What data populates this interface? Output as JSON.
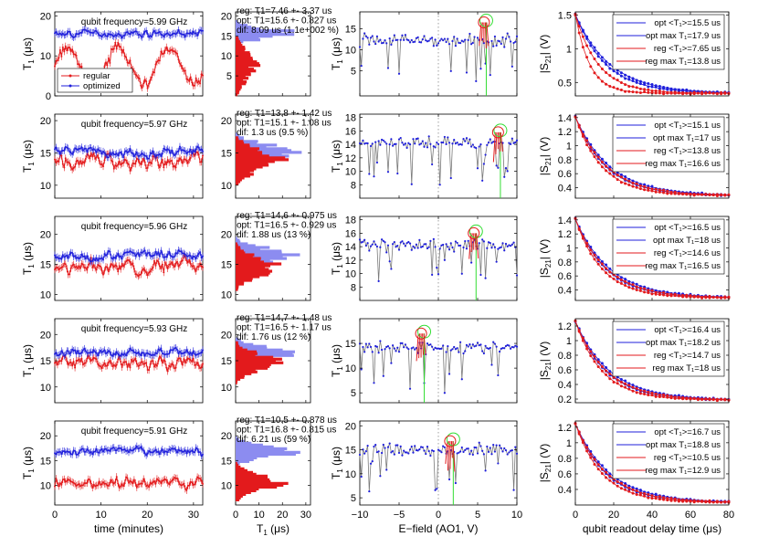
{
  "chart_data": {
    "type": "composite",
    "rows": [
      {
        "frequency_label": "qubit frequency=5.99 GHz",
        "col1": {
          "ylim": [
            0,
            21
          ],
          "yticks": [
            "0",
            "10",
            "20"
          ],
          "regular_mean": 7.46,
          "optimized_mean": 15.6,
          "legend": [
            "regular",
            "optimized"
          ]
        },
        "col2": {
          "yticks": [
            "5",
            "10",
            "15",
            "20"
          ],
          "ylim": [
            0,
            21
          ],
          "annotations": [
            "reg: T1=7.46 +- 3.37 us",
            "opt: T1=15.6 +- 0.827 us",
            "dif: 8.09 us (1.1e+002 %)"
          ]
        },
        "col3": {
          "ylim": [
            -1,
            19
          ],
          "yticks": [
            "5",
            "10",
            "15"
          ],
          "green_x": 6.1,
          "red_x": 5.8,
          "peak": 16.5
        },
        "col4": {
          "ylim": [
            0.3,
            1.55
          ],
          "yticks": [
            "0.5",
            "1",
            "1.5"
          ],
          "legend": [
            "opt <T₁>=15.5 us",
            "opt max T₁=17.9 us",
            "reg <T₁>=7.65 us",
            "reg max T₁=13.8 us"
          ]
        }
      },
      {
        "frequency_label": "qubit frequency=5.97 GHz",
        "col1": {
          "ylim": [
            8,
            21
          ],
          "yticks": [
            "10",
            "15",
            "20"
          ],
          "regular_mean": 13.8,
          "optimized_mean": 15.1
        },
        "col2": {
          "yticks": [
            "10",
            "15",
            "20"
          ],
          "ylim": [
            8,
            21
          ],
          "annotations": [
            "reg: T1=13.8 +- 1.42 us",
            "opt: T1=15.1 +- 1.08 us",
            "dif: 1.3 us (9.5 %)"
          ]
        },
        "col3": {
          "ylim": [
            6,
            18.5
          ],
          "yticks": [
            "8",
            "10",
            "12",
            "14",
            "16",
            "18"
          ],
          "green_x": 7.9,
          "red_x": 7.6,
          "peak": 15.8
        },
        "col4": {
          "ylim": [
            0.25,
            1.45
          ],
          "yticks": [
            "0.4",
            "0.6",
            "0.8",
            "1",
            "1.2",
            "1.4"
          ],
          "legend": [
            "opt <T₁>=15.1 us",
            "opt max T₁=17 us",
            "reg <T₁>=13.8 us",
            "reg max T₁=16.6 us"
          ]
        }
      },
      {
        "frequency_label": "qubit frequency=5.96 GHz",
        "col1": {
          "ylim": [
            9,
            23
          ],
          "yticks": [
            "10",
            "15",
            "20"
          ],
          "regular_mean": 14.6,
          "optimized_mean": 16.5
        },
        "col2": {
          "yticks": [
            "10",
            "15",
            "20"
          ],
          "ylim": [
            9,
            23
          ],
          "annotations": [
            "reg: T1=14.6 +- 0.975 us",
            "opt: T1=16.5 +- 0.929 us",
            "dif: 1.88 us (13 %)"
          ]
        },
        "col3": {
          "ylim": [
            6,
            18.5
          ],
          "yticks": [
            "8",
            "10",
            "12",
            "14",
            "16",
            "18"
          ],
          "green_x": 4.8,
          "red_x": 4.5,
          "peak": 16.0
        },
        "col4": {
          "ylim": [
            0.25,
            1.45
          ],
          "yticks": [
            "0.4",
            "0.6",
            "0.8",
            "1",
            "1.2",
            "1.4"
          ],
          "legend": [
            "opt <T₁>=16.5 us",
            "opt max T₁=18 us",
            "reg <T₁>=14.6 us",
            "reg max T₁=16.5 us"
          ]
        }
      },
      {
        "frequency_label": "qubit frequency=5.93 GHz",
        "col1": {
          "ylim": [
            7,
            23
          ],
          "yticks": [
            "10",
            "15",
            "20"
          ],
          "regular_mean": 14.7,
          "optimized_mean": 16.5
        },
        "col2": {
          "yticks": [
            "10",
            "15",
            "20"
          ],
          "ylim": [
            7,
            23
          ],
          "annotations": [
            "reg: T1=14.7 +- 1.48 us",
            "opt: T1=16.5 +- 1.17 us",
            "dif: 1.76 us (12 %)"
          ]
        },
        "col3": {
          "ylim": [
            3,
            20
          ],
          "yticks": [
            "5",
            "10",
            "15"
          ],
          "green_x": -1.8,
          "red_x": -2.2,
          "peak": 17.0
        },
        "col4": {
          "ylim": [
            0.15,
            1.3
          ],
          "yticks": [
            "0.2",
            "0.4",
            "0.6",
            "0.8",
            "1",
            "1.2"
          ],
          "legend": [
            "opt <T₁>=16.4 us",
            "opt max T₁=18.2 us",
            "reg <T₁>=14.7 us",
            "reg max T₁=18 us"
          ]
        }
      },
      {
        "frequency_label": "qubit frequency=5.91 GHz",
        "col1": {
          "ylim": [
            6,
            23
          ],
          "yticks": [
            "10",
            "15",
            "20"
          ],
          "regular_mean": 10.5,
          "optimized_mean": 16.8
        },
        "col2": {
          "yticks": [
            "10",
            "15",
            "20"
          ],
          "ylim": [
            6,
            23
          ],
          "annotations": [
            "reg: T1=10.5 +- 0.878 us",
            "opt: T1=16.8 +- 0.815 us",
            "dif: 6.21 us (59 %)"
          ]
        },
        "col3": {
          "ylim": [
            3.5,
            21
          ],
          "yticks": [
            "5",
            "10",
            "15",
            "20"
          ],
          "green_x": 1.9,
          "red_x": 1.5,
          "peak": 16.8
        },
        "col4": {
          "ylim": [
            0.2,
            1.28
          ],
          "yticks": [
            "0.4",
            "0.6",
            "0.8",
            "1",
            "1.2"
          ],
          "legend": [
            "opt <T₁>=16.7 us",
            "opt max T₁=18.8 us",
            "reg <T₁>=10.5 us",
            "reg max T₁=12.9 us"
          ]
        }
      }
    ],
    "col1_axis": {
      "xlim": [
        0,
        32
      ],
      "xticks": [
        "0",
        "10",
        "20",
        "30"
      ],
      "xlabel": "time (minutes)",
      "ylabel_main": "T",
      "ylabel_sub": "1",
      "ylabel_rest": " (μs)"
    },
    "col2_axis": {
      "xlim": [
        0,
        32
      ],
      "xticks": [
        "0",
        "10",
        "20",
        "30"
      ],
      "xlabel_main": "T",
      "xlabel_sub": "1",
      "xlabel_rest": " (μs)"
    },
    "col3_axis": {
      "xlim": [
        -10,
        10
      ],
      "xticks": [
        "−10",
        "−5",
        "0",
        "5",
        "10"
      ],
      "xlabel": "E−field (AO1, V)",
      "ylabel_main": "T",
      "ylabel_sub": "1",
      "ylabel_rest": " (μs)"
    },
    "col4_axis": {
      "xlim": [
        0,
        80
      ],
      "xticks": [
        "0",
        "20",
        "40",
        "60",
        "80"
      ],
      "xlabel": "qubit readout delay time (μs)",
      "ylabel_main": "|S",
      "ylabel_sub": "21",
      "ylabel_rest": "| (V)"
    },
    "colors": {
      "regular": "#e31a1c",
      "optimized": "#1f1fdb",
      "hist_opt": "#8c8cf0",
      "trace": "#7a7a7a",
      "marker": "#1f1fdb",
      "green": "#33dd33"
    }
  }
}
